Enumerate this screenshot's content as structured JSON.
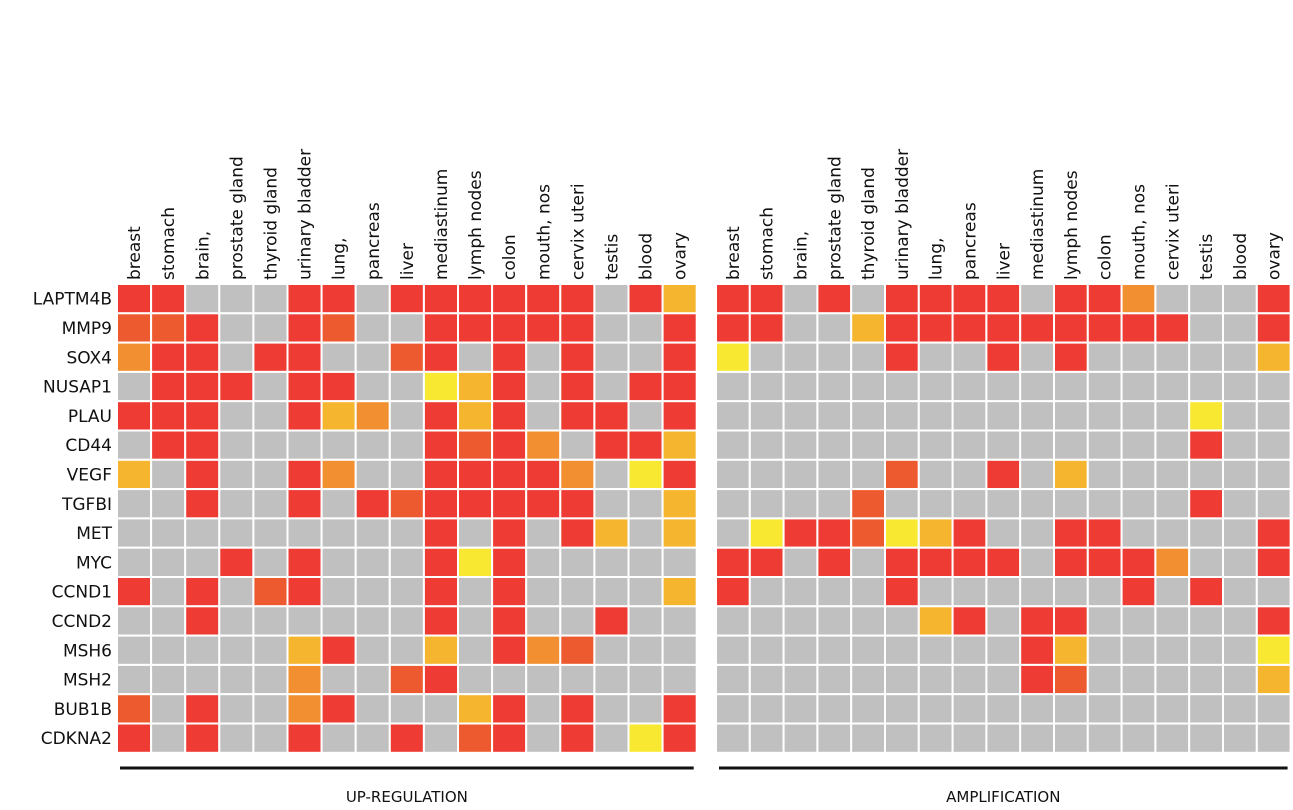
{
  "chart_data": [
    {
      "type": "heatmap",
      "title": "UP-REGULATION",
      "columns": [
        "breast",
        "stomach",
        "brain,",
        "prostate gland",
        "thyroid gland",
        "urinary bladder",
        "lung,",
        "pancreas",
        "liver",
        "mediastinum",
        "lymph nodes",
        "colon",
        "mouth, nos",
        "cervix uteri",
        "testis",
        "blood",
        "ovary"
      ],
      "rows": [
        "LAPTM4B",
        "MMP9",
        "SOX4",
        "NUSAP1",
        "PLAU",
        "CD44",
        "VEGF",
        "TGFBI",
        "MET",
        "MYC",
        "CCND1",
        "CCND2",
        "MSH6",
        "MSH2",
        "BUB1B",
        "CDKNA2"
      ],
      "colors": [
        "#c0c0c0",
        "#f8e832",
        "#f5b52f",
        "#f28f30",
        "#ee5a2f",
        "#ee3b33"
      ],
      "values": [
        [
          5,
          5,
          0,
          0,
          0,
          5,
          5,
          0,
          5,
          5,
          5,
          5,
          5,
          5,
          0,
          5,
          2
        ],
        [
          4,
          4,
          5,
          0,
          0,
          5,
          4,
          0,
          0,
          5,
          5,
          5,
          5,
          5,
          0,
          0,
          5
        ],
        [
          3,
          5,
          5,
          0,
          5,
          5,
          0,
          0,
          4,
          5,
          0,
          5,
          0,
          5,
          0,
          0,
          5
        ],
        [
          0,
          5,
          5,
          5,
          0,
          5,
          5,
          0,
          0,
          1,
          2,
          5,
          0,
          5,
          0,
          5,
          5
        ],
        [
          5,
          5,
          5,
          0,
          0,
          5,
          2,
          3,
          0,
          5,
          2,
          5,
          0,
          5,
          5,
          0,
          5
        ],
        [
          0,
          5,
          5,
          0,
          0,
          0,
          0,
          0,
          0,
          5,
          4,
          5,
          3,
          0,
          5,
          5,
          2
        ],
        [
          2,
          0,
          5,
          0,
          0,
          5,
          3,
          0,
          0,
          5,
          5,
          5,
          5,
          3,
          0,
          1,
          5
        ],
        [
          0,
          0,
          5,
          0,
          0,
          5,
          0,
          5,
          4,
          5,
          5,
          5,
          5,
          5,
          0,
          0,
          2
        ],
        [
          0,
          0,
          0,
          0,
          0,
          0,
          0,
          0,
          0,
          5,
          0,
          5,
          0,
          5,
          2,
          0,
          2
        ],
        [
          0,
          0,
          0,
          5,
          0,
          5,
          0,
          0,
          0,
          5,
          1,
          5,
          0,
          0,
          0,
          0,
          0
        ],
        [
          5,
          0,
          5,
          0,
          4,
          5,
          0,
          0,
          0,
          5,
          0,
          5,
          0,
          0,
          0,
          0,
          2
        ],
        [
          0,
          0,
          5,
          0,
          0,
          0,
          0,
          0,
          0,
          5,
          0,
          5,
          0,
          0,
          5,
          0,
          0
        ],
        [
          0,
          0,
          0,
          0,
          0,
          2,
          5,
          0,
          0,
          2,
          0,
          5,
          3,
          4,
          0,
          0,
          0
        ],
        [
          0,
          0,
          0,
          0,
          0,
          3,
          0,
          0,
          4,
          5,
          0,
          0,
          0,
          0,
          0,
          0,
          0
        ],
        [
          4,
          0,
          5,
          0,
          0,
          3,
          5,
          0,
          0,
          0,
          2,
          5,
          0,
          5,
          0,
          0,
          5
        ],
        [
          5,
          0,
          5,
          0,
          0,
          5,
          0,
          0,
          5,
          0,
          4,
          5,
          0,
          5,
          0,
          1,
          5
        ]
      ]
    },
    {
      "type": "heatmap",
      "title": "AMPLIFICATION",
      "columns": [
        "breast",
        "stomach",
        "brain,",
        "prostate gland",
        "thyroid gland",
        "urinary bladder",
        "lung,",
        "pancreas",
        "liver",
        "mediastinum",
        "lymph nodes",
        "colon",
        "mouth, nos",
        "cervix uteri",
        "testis",
        "blood",
        "ovary"
      ],
      "colors": [
        "#c0c0c0",
        "#f8e832",
        "#f5b52f",
        "#f28f30",
        "#ee5a2f",
        "#ee3b33"
      ],
      "values": [
        [
          5,
          5,
          0,
          5,
          0,
          5,
          5,
          5,
          5,
          0,
          5,
          5,
          3,
          0,
          0,
          0,
          5
        ],
        [
          5,
          5,
          0,
          0,
          2,
          5,
          5,
          5,
          5,
          5,
          5,
          5,
          5,
          5,
          0,
          0,
          5
        ],
        [
          1,
          0,
          0,
          0,
          0,
          5,
          0,
          0,
          5,
          0,
          5,
          0,
          0,
          0,
          0,
          0,
          2
        ],
        [
          0,
          0,
          0,
          0,
          0,
          0,
          0,
          0,
          0,
          0,
          0,
          0,
          0,
          0,
          0,
          0,
          0
        ],
        [
          0,
          0,
          0,
          0,
          0,
          0,
          0,
          0,
          0,
          0,
          0,
          0,
          0,
          0,
          1,
          0,
          0
        ],
        [
          0,
          0,
          0,
          0,
          0,
          0,
          0,
          0,
          0,
          0,
          0,
          0,
          0,
          0,
          5,
          0,
          0
        ],
        [
          0,
          0,
          0,
          0,
          0,
          4,
          0,
          0,
          5,
          0,
          2,
          0,
          0,
          0,
          0,
          0,
          0
        ],
        [
          0,
          0,
          0,
          0,
          4,
          0,
          0,
          0,
          0,
          0,
          0,
          0,
          0,
          0,
          5,
          0,
          0
        ],
        [
          0,
          1,
          5,
          5,
          4,
          1,
          2,
          5,
          0,
          0,
          5,
          5,
          0,
          0,
          0,
          0,
          5
        ],
        [
          5,
          5,
          0,
          5,
          0,
          5,
          5,
          5,
          5,
          0,
          5,
          5,
          5,
          3,
          0,
          0,
          5
        ],
        [
          5,
          0,
          0,
          0,
          0,
          5,
          0,
          0,
          0,
          0,
          0,
          0,
          5,
          0,
          5,
          0,
          0
        ],
        [
          0,
          0,
          0,
          0,
          0,
          0,
          2,
          5,
          0,
          5,
          5,
          0,
          0,
          0,
          0,
          0,
          5
        ],
        [
          0,
          0,
          0,
          0,
          0,
          0,
          0,
          0,
          0,
          5,
          2,
          0,
          0,
          0,
          0,
          0,
          1
        ],
        [
          0,
          0,
          0,
          0,
          0,
          0,
          0,
          0,
          0,
          5,
          4,
          0,
          0,
          0,
          0,
          0,
          2
        ],
        [
          0,
          0,
          0,
          0,
          0,
          0,
          0,
          0,
          0,
          0,
          0,
          0,
          0,
          0,
          0,
          0,
          0
        ],
        [
          0,
          0,
          0,
          0,
          0,
          0,
          0,
          0,
          0,
          0,
          0,
          0,
          0,
          0,
          0,
          0,
          0
        ]
      ]
    }
  ]
}
